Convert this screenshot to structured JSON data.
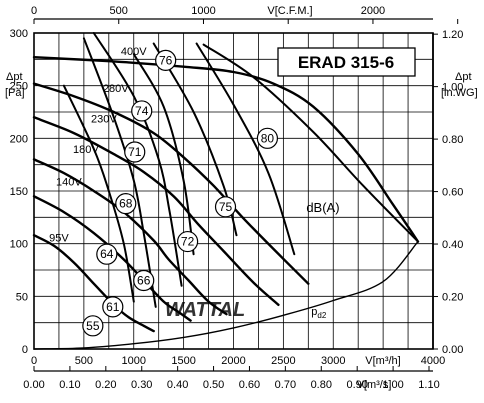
{
  "chart_data": {
    "type": "line",
    "title": "ERAD 315-6",
    "watermark": "WATTAL",
    "x_axis": {
      "label": "V[m³/h]",
      "range": [
        0,
        4000
      ],
      "ticks": [
        0,
        500,
        1000,
        1500,
        2000,
        2500,
        3000,
        4000
      ],
      "tick_labels": [
        "0",
        "500",
        "1000",
        "1500",
        "2000",
        "2500",
        "3000",
        "4000"
      ]
    },
    "x_axis_top": {
      "label": "V[C.F.M.]",
      "ticks": [
        0,
        500,
        1000,
        1500,
        2000,
        2500
      ],
      "tick_labels": [
        "0",
        "500",
        "1000",
        "",
        "2000",
        ""
      ]
    },
    "x_axis_bottom2": {
      "label": "V[m³/s]",
      "ticks": [
        0,
        0.1,
        0.2,
        0.3,
        0.4,
        0.5,
        0.6,
        0.7,
        0.8,
        0.9,
        1.0,
        1.1
      ],
      "tick_labels": [
        "0.00",
        "0.10",
        "0.20",
        "0.30",
        "0.40",
        "0.50",
        "0.60",
        "0.70",
        "0.80",
        "0.90",
        "1.00",
        "1.10"
      ]
    },
    "y_axis": {
      "label": "Δpt",
      "unit": "[Pa]",
      "range": [
        0,
        300
      ],
      "ticks": [
        0,
        50,
        100,
        150,
        200,
        250,
        300
      ],
      "tick_labels": [
        "0",
        "50",
        "100",
        "150",
        "200",
        "250",
        "300"
      ]
    },
    "y_axis_right": {
      "label": "Δpt",
      "unit": "[in.WG]",
      "ticks": [
        0,
        0.2,
        0.4,
        0.6,
        0.8,
        1.0,
        1.2
      ],
      "tick_labels": [
        "0.00",
        "0.20",
        "0.40",
        "0.60",
        "0.80",
        "1.00",
        "1.20"
      ]
    },
    "grid": true,
    "series": [
      {
        "name": "400V",
        "x": [
          0,
          800,
          1500,
          2000,
          2400,
          2800,
          3250,
          3600,
          3850
        ],
        "y": [
          277,
          273,
          268,
          263,
          252,
          230,
          185,
          137,
          102
        ]
      },
      {
        "name": "280V",
        "x": [
          0,
          400,
          800,
          1200,
          1500,
          1800,
          2100,
          2400,
          2750
        ],
        "y": [
          252,
          240,
          225,
          205,
          182,
          155,
          124,
          95,
          62
        ]
      },
      {
        "name": "230V",
        "x": [
          0,
          400,
          800,
          1100,
          1400,
          1650,
          1900,
          2200,
          2450
        ],
        "y": [
          220,
          205,
          185,
          168,
          145,
          118,
          93,
          63,
          42
        ]
      },
      {
        "name": "180V",
        "x": [
          0,
          300,
          600,
          900,
          1200,
          1350,
          1550,
          1750,
          1930
        ],
        "y": [
          180,
          167,
          150,
          130,
          103,
          85,
          65,
          45,
          33
        ]
      },
      {
        "name": "140V",
        "x": [
          0,
          300,
          600,
          900,
          1100,
          1300,
          1450,
          1570
        ],
        "y": [
          145,
          130,
          110,
          85,
          65,
          45,
          35,
          27
        ]
      },
      {
        "name": "95V",
        "x": [
          0,
          200,
          400,
          600,
          800,
          950,
          1100,
          1200
        ],
        "y": [
          108,
          98,
          82,
          62,
          42,
          30,
          22,
          17
        ]
      },
      {
        "name": "Pd2",
        "x": [
          0,
          500,
          1000,
          1500,
          2000,
          2500,
          3000,
          3500,
          3850
        ],
        "y": [
          0,
          1,
          5,
          11,
          20,
          32,
          46,
          64,
          102
        ]
      }
    ],
    "noise_lines": [
      {
        "x": [
          1700,
          2200,
          2800,
          3300,
          3850
        ],
        "y": [
          289,
          258,
          206,
          155,
          102
        ]
      },
      {
        "x": [
          1630,
          2000,
          2350,
          2610
        ],
        "y": [
          290,
          232,
          167,
          90
        ]
      },
      {
        "x": [
          1200,
          1600,
          1900,
          2030
        ],
        "y": [
          290,
          225,
          155,
          108
        ]
      },
      {
        "x": [
          1000,
          1300,
          1500,
          1600
        ],
        "y": [
          280,
          230,
          160,
          90
        ]
      },
      {
        "x": [
          600,
          1000,
          1250,
          1360,
          1480
        ],
        "y": [
          300,
          240,
          180,
          130,
          60
        ]
      },
      {
        "x": [
          500,
          800,
          1000,
          1100,
          1220
        ],
        "y": [
          295,
          220,
          160,
          110,
          40
        ]
      },
      {
        "x": [
          300,
          600,
          750,
          900,
          1000
        ],
        "y": [
          250,
          190,
          150,
          100,
          45
        ]
      }
    ],
    "curve_labels": [
      {
        "text": "400V",
        "x": 1000,
        "y": 283
      },
      {
        "text": "280V",
        "x": 820,
        "y": 248
      },
      {
        "text": "230V",
        "x": 700,
        "y": 219
      },
      {
        "text": "180V",
        "x": 520,
        "y": 190
      },
      {
        "text": "140V",
        "x": 350,
        "y": 159
      },
      {
        "text": "95V",
        "x": 250,
        "y": 106
      },
      {
        "text": "dB(A)",
        "x": 2730,
        "y": 134
      },
      {
        "text": "pd2",
        "x": 2780,
        "y": 36
      }
    ],
    "noise_markers": [
      {
        "value": "76",
        "x": 1320,
        "y": 274
      },
      {
        "value": "80",
        "x": 2340,
        "y": 200
      },
      {
        "value": "74",
        "x": 1080,
        "y": 226
      },
      {
        "value": "71",
        "x": 1010,
        "y": 187
      },
      {
        "value": "75",
        "x": 1920,
        "y": 135
      },
      {
        "value": "68",
        "x": 920,
        "y": 138
      },
      {
        "value": "72",
        "x": 1540,
        "y": 102
      },
      {
        "value": "64",
        "x": 730,
        "y": 90
      },
      {
        "value": "66",
        "x": 1100,
        "y": 65
      },
      {
        "value": "61",
        "x": 790,
        "y": 40
      },
      {
        "value": "55",
        "x": 590,
        "y": 22
      }
    ]
  }
}
